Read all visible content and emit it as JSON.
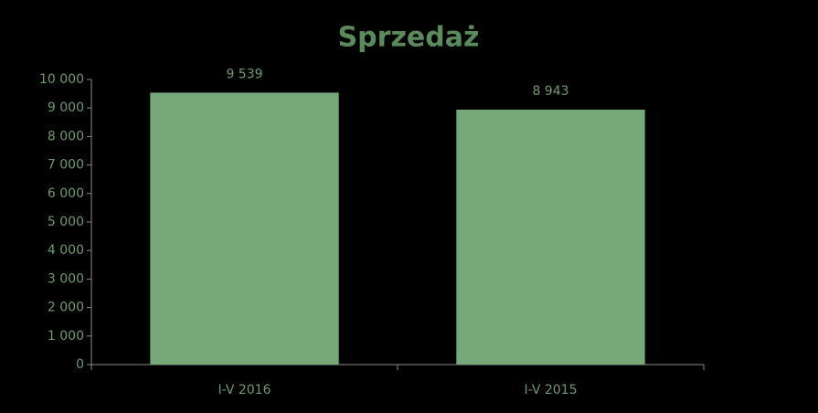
{
  "chart_data": {
    "type": "bar",
    "title": "Sprzedaż",
    "categories": [
      "I-V 2016",
      "I-V 2015"
    ],
    "values": [
      9539,
      8943
    ],
    "value_labels": [
      "9 539",
      "8 943"
    ],
    "color": "#77a87a",
    "ylim": [
      0,
      10000
    ],
    "yticks": [
      0,
      {
        "value": 1000,
        "label": "1 000"
      },
      {
        "value": 2000,
        "label": "2 000"
      },
      {
        "value": 3000,
        "label": "3 000"
      },
      {
        "value": 4000,
        "label": "4 000"
      },
      {
        "value": 5000,
        "label": "5 000"
      },
      {
        "value": 6000,
        "label": "6 000"
      },
      {
        "value": 7000,
        "label": "7 000"
      },
      {
        "value": 8000,
        "label": "8 000"
      },
      {
        "value": 9000,
        "label": "9 000"
      },
      {
        "value": 10000,
        "label": "10 000"
      }
    ],
    "grid": false
  }
}
